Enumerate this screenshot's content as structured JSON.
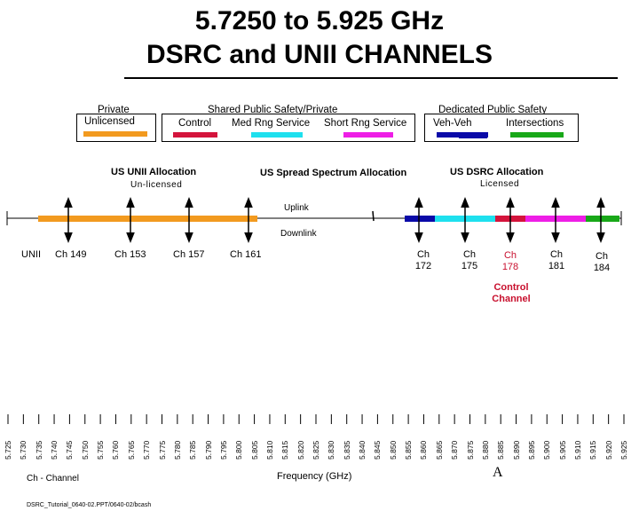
{
  "title": {
    "line1": "5.7250 to 5.925 GHz",
    "line2": "DSRC and UNII CHANNELS"
  },
  "legend": {
    "private": {
      "heading": "Private",
      "label": "Unlicensed",
      "color": "#f29a1f"
    },
    "shared": {
      "heading": "Shared Public Safety/Private",
      "items": [
        {
          "label": "Control",
          "color": "#d4143c"
        },
        {
          "label": "Med Rng Service",
          "color": "#1ee0ee"
        },
        {
          "label": "Short Rng Service",
          "color": "#ee1ee6"
        }
      ]
    },
    "dedicated": {
      "heading": "Dedicated Public Safety",
      "items": [
        {
          "label": "Veh-Veh",
          "color": "#0a0aa8"
        },
        {
          "label": "Intersections",
          "color": "#18a818"
        }
      ]
    }
  },
  "allocations": {
    "unii": {
      "title": "US UNII Allocation",
      "sub": "Un-licensed"
    },
    "spread": {
      "title": "US Spread Spectrum Allocation"
    },
    "dsrc": {
      "title": "US DSRC Allocation",
      "sub": "Licensed"
    }
  },
  "links": {
    "uplink": "Uplink",
    "downlink": "Downlink"
  },
  "unii_label": "UNII",
  "unii_channels": [
    "Ch 149",
    "Ch 153",
    "Ch 157",
    "Ch 161"
  ],
  "dsrc_channels": [
    {
      "line1": "Ch",
      "line2": "172",
      "color": "#000000"
    },
    {
      "line1": "Ch",
      "line2": "175",
      "color": "#000000"
    },
    {
      "line1": "Ch",
      "line2": "178",
      "color": "#c8102e"
    },
    {
      "line1": "Ch",
      "line2": "181",
      "color": "#000000"
    },
    {
      "line1": "Ch",
      "line2": "184",
      "color": "#000000"
    }
  ],
  "control_channel": {
    "line1": "Control",
    "line2": "Channel",
    "color": "#c8102e"
  },
  "frequency_ticks": [
    "5.725",
    "5.730",
    "5.735",
    "5.740",
    "5.745",
    "5.750",
    "5.755",
    "5.760",
    "5.765",
    "5.770",
    "5.775",
    "5.780",
    "5.785",
    "5.790",
    "5.795",
    "5.800",
    "5.805",
    "5.810",
    "5.815",
    "5.820",
    "5.825",
    "5.830",
    "5.835",
    "5.840",
    "5.845",
    "5.850",
    "5.855",
    "5.860",
    "5.865",
    "5.870",
    "5.875",
    "5.880",
    "5.885",
    "5.890",
    "5.895",
    "5.900",
    "5.905",
    "5.910",
    "5.915",
    "5.920",
    "5.925"
  ],
  "axis_label": "Frequency (GHz)",
  "abbrev_note": "Ch - Channel",
  "marker_letter": "A",
  "footer": "DSRC_Tutorial_0640-02.PPT/0640-02/bcash"
}
